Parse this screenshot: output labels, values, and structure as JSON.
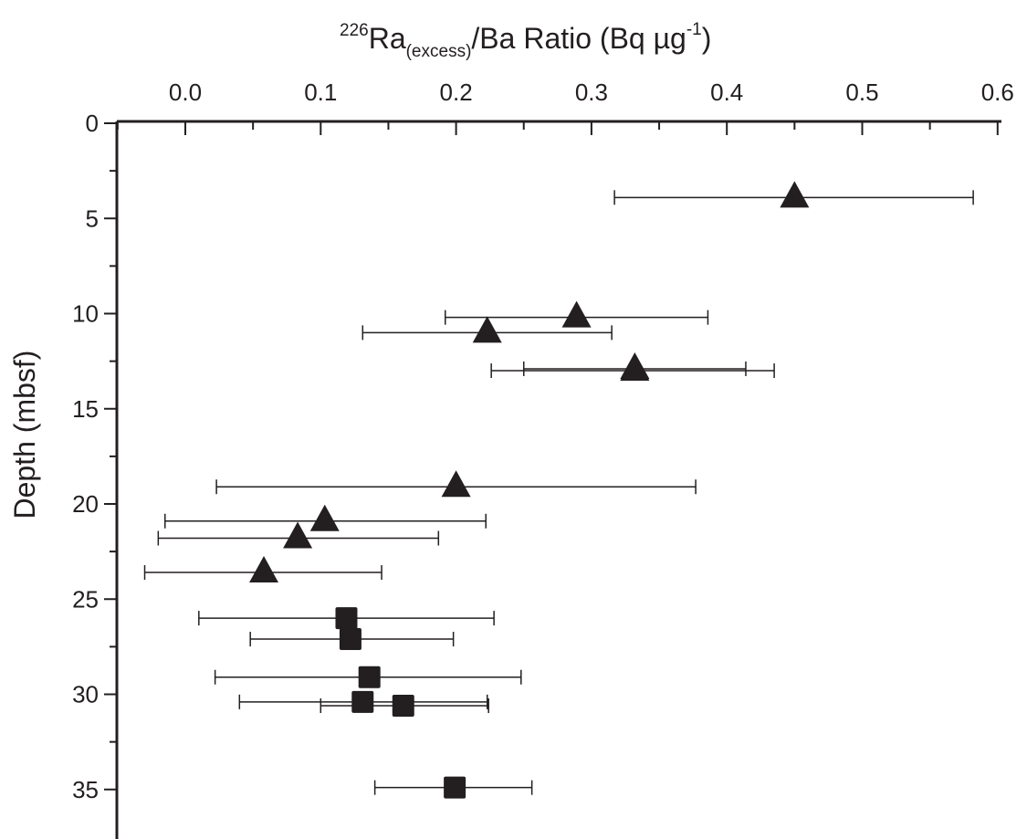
{
  "chart_data": {
    "type": "scatter",
    "title": {
      "iso_mass": "226",
      "element": "Ra",
      "subscript": "(excess)",
      "rest": "/Ba Ratio (Bq µg",
      "exponent": "-1",
      "close": ")"
    },
    "xlabel": "226Ra(excess)/Ba Ratio (Bq µg-1)",
    "ylabel": "Depth (mbsf)",
    "x_axis_position": "top",
    "y_axis_inverted": true,
    "xlim": [
      -0.05,
      0.6
    ],
    "ylim": [
      0,
      37
    ],
    "x_ticks": [
      "0.0",
      "0.1",
      "0.2",
      "0.3",
      "0.4",
      "0.5",
      "0.6"
    ],
    "x_tick_values": [
      0.0,
      0.1,
      0.2,
      0.3,
      0.4,
      0.5,
      0.6
    ],
    "y_ticks": [
      "0",
      "5",
      "10",
      "15",
      "20",
      "25",
      "30",
      "35"
    ],
    "y_tick_values": [
      0,
      5,
      10,
      15,
      20,
      25,
      30,
      35
    ],
    "grid": false,
    "legend": "none",
    "color": "#231f20",
    "series": [
      {
        "marker": "triangle",
        "points": [
          {
            "x": 0.45,
            "y": 3.9,
            "xerr_low": 0.317,
            "xerr_high": 0.582
          },
          {
            "x": 0.289,
            "y": 10.2,
            "xerr_low": 0.192,
            "xerr_high": 0.386
          },
          {
            "x": 0.223,
            "y": 11.0,
            "xerr_low": 0.131,
            "xerr_high": 0.315
          },
          {
            "x": 0.332,
            "y": 12.9,
            "xerr_low": 0.25,
            "xerr_high": 0.414
          },
          {
            "x": 0.332,
            "y": 13.0,
            "xerr_low": 0.226,
            "xerr_high": 0.435
          },
          {
            "x": 0.2,
            "y": 19.1,
            "xerr_low": 0.023,
            "xerr_high": 0.377
          },
          {
            "x": 0.103,
            "y": 20.9,
            "xerr_low": -0.015,
            "xerr_high": 0.222
          },
          {
            "x": 0.083,
            "y": 21.8,
            "xerr_low": -0.02,
            "xerr_high": 0.187
          },
          {
            "x": 0.058,
            "y": 23.6,
            "xerr_low": -0.03,
            "xerr_high": 0.145
          }
        ]
      },
      {
        "marker": "square",
        "points": [
          {
            "x": 0.119,
            "y": 26.0,
            "xerr_low": 0.01,
            "xerr_high": 0.228
          },
          {
            "x": 0.122,
            "y": 27.1,
            "xerr_low": 0.048,
            "xerr_high": 0.198
          },
          {
            "x": 0.136,
            "y": 29.1,
            "xerr_low": 0.022,
            "xerr_high": 0.248
          },
          {
            "x": 0.131,
            "y": 30.4,
            "xerr_low": 0.04,
            "xerr_high": 0.223
          },
          {
            "x": 0.161,
            "y": 30.6,
            "xerr_low": 0.1,
            "xerr_high": 0.224
          },
          {
            "x": 0.199,
            "y": 34.9,
            "xerr_low": 0.14,
            "xerr_high": 0.256
          }
        ]
      }
    ]
  }
}
